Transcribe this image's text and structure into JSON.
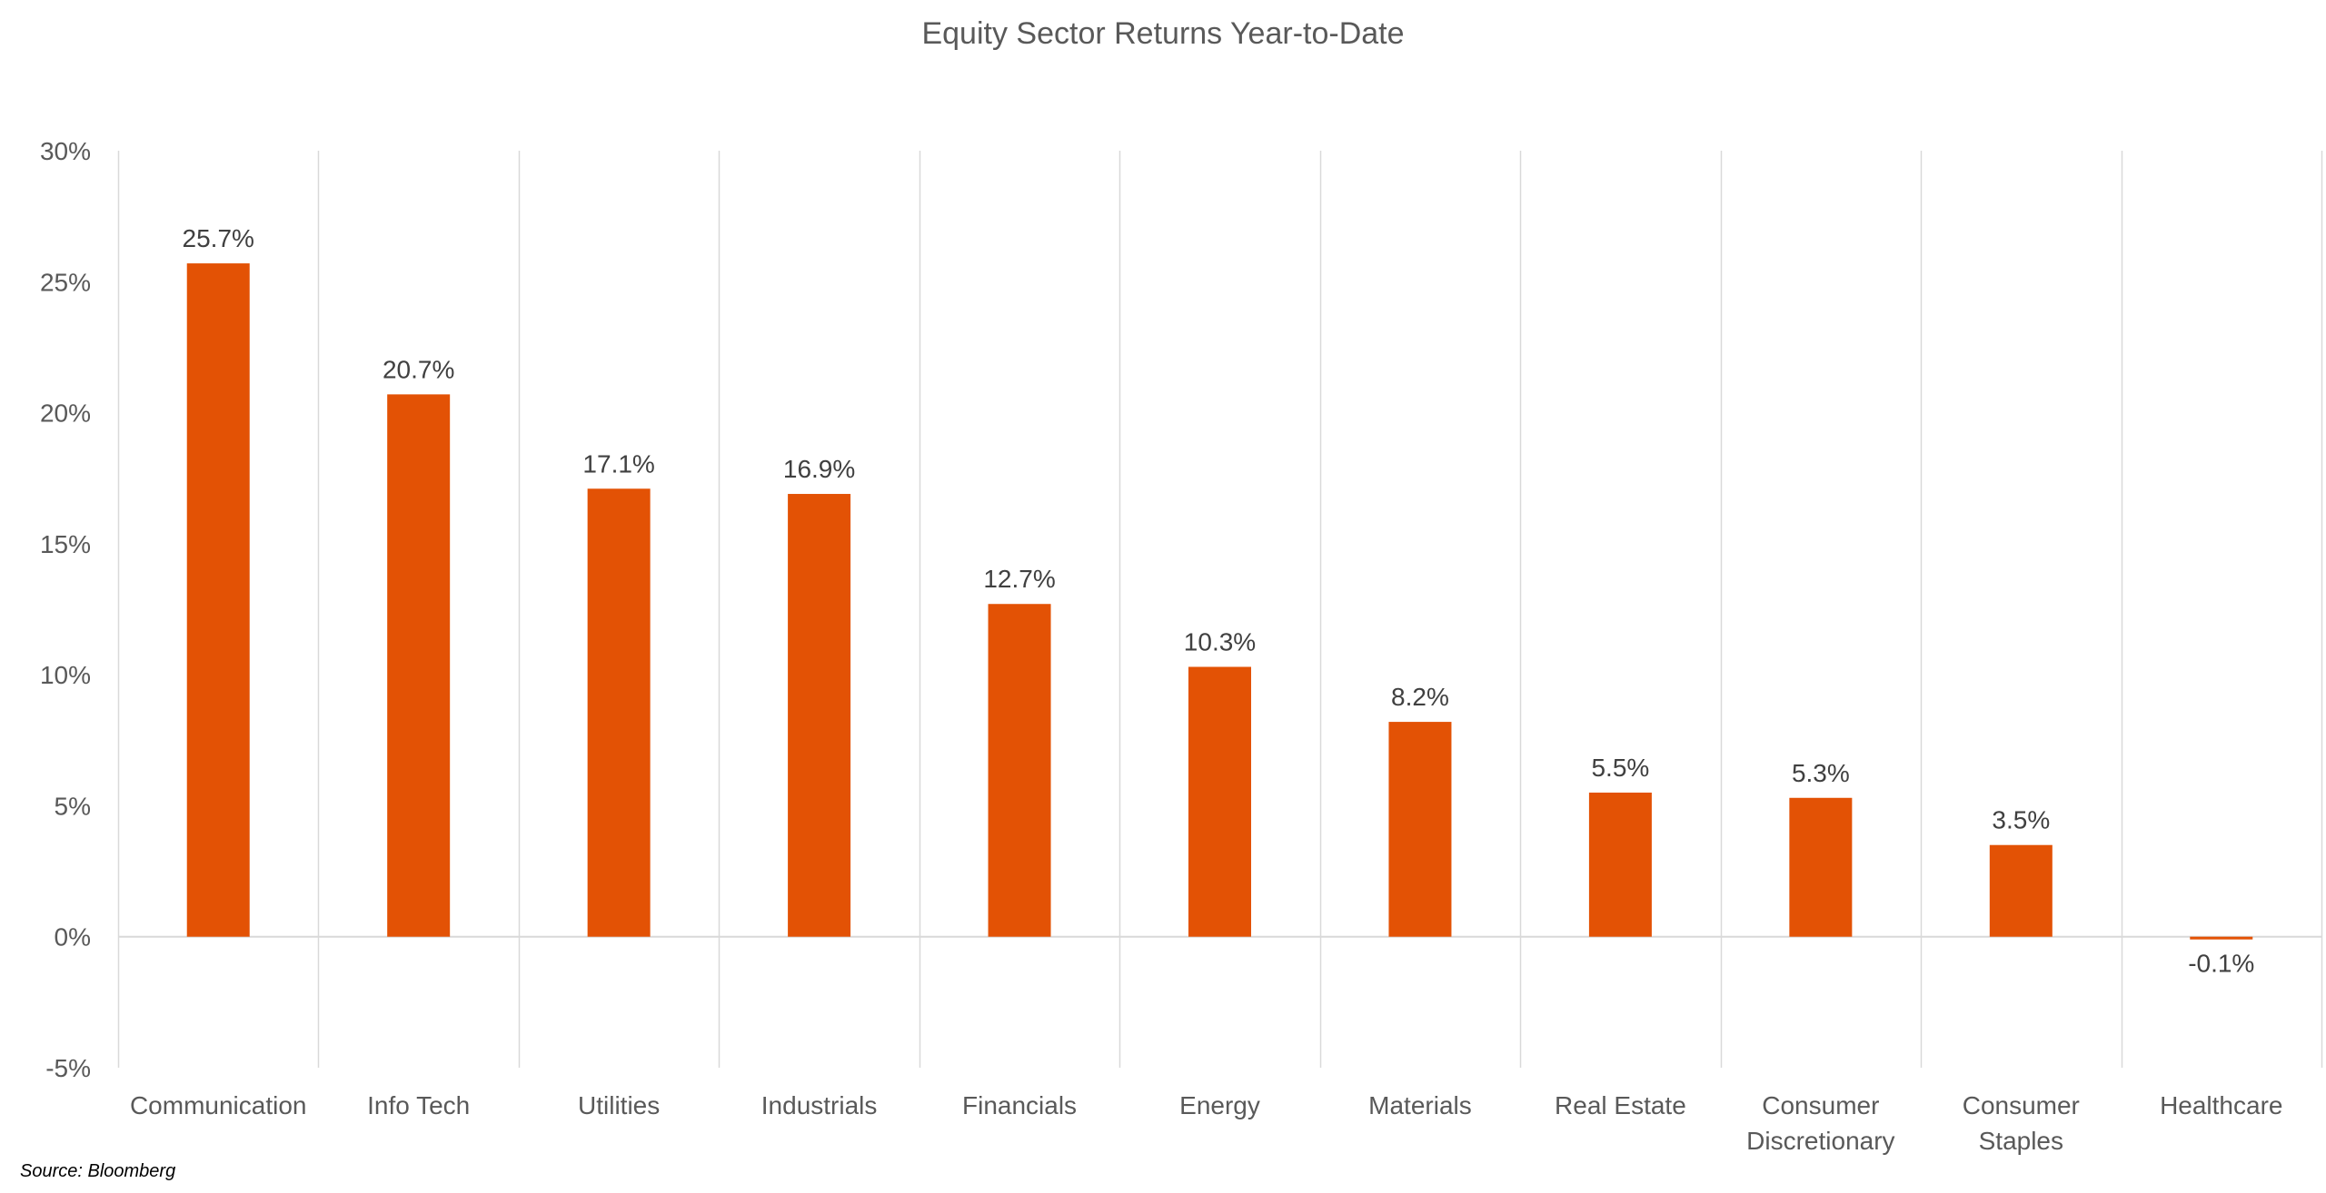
{
  "chart_data": {
    "type": "bar",
    "title": "Equity Sector Returns Year-to-Date",
    "xlabel": "",
    "ylabel": "",
    "categories": [
      [
        "Communication"
      ],
      [
        "Info Tech"
      ],
      [
        "Utilities"
      ],
      [
        "Industrials"
      ],
      [
        "Financials"
      ],
      [
        "Energy"
      ],
      [
        "Materials"
      ],
      [
        "Real Estate"
      ],
      [
        "Consumer",
        "Discretionary"
      ],
      [
        "Consumer",
        "Staples"
      ],
      [
        "Healthcare"
      ]
    ],
    "values": [
      25.7,
      20.7,
      17.1,
      16.9,
      12.7,
      10.3,
      8.2,
      5.5,
      5.3,
      3.5,
      -0.1
    ],
    "data_labels": [
      "25.7%",
      "20.7%",
      "17.1%",
      "16.9%",
      "12.7%",
      "10.3%",
      "8.2%",
      "5.5%",
      "5.3%",
      "3.5%",
      "-0.1%"
    ],
    "ylim": [
      -5,
      30
    ],
    "yticks": [
      30,
      25,
      20,
      15,
      10,
      5,
      0,
      -5
    ],
    "ytick_labels": [
      "30%",
      "25%",
      "20%",
      "15%",
      "10%",
      "5%",
      "0%",
      "-5%"
    ],
    "grid": "vertical category separators",
    "legend": "none",
    "bar_color": "#E35205",
    "grid_color": "#D9D9D9",
    "source": "Source: Bloomberg"
  }
}
